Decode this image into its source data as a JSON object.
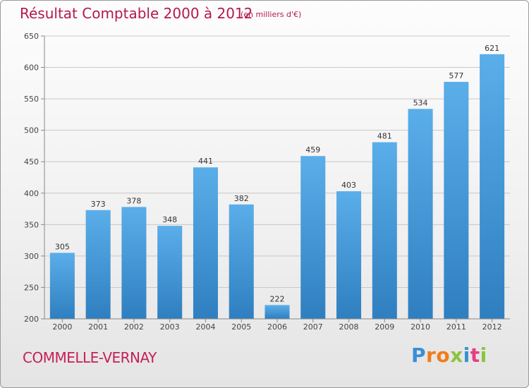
{
  "header": {
    "title": "Résultat Comptable 2000 à 2012",
    "subtitle": "(en milliers d'€)"
  },
  "footer": {
    "commune": "COMMELLE-VERNAY",
    "logo_letters": [
      "P",
      "r",
      "o",
      "x",
      "i",
      "t",
      "i"
    ],
    "logo_colors": [
      "#3a8fd4",
      "#f07d1a",
      "#f07d1a",
      "#8bc43f",
      "#3a8fd4",
      "#e53f86",
      "#8bc43f"
    ]
  },
  "colors": {
    "bar_top": "#5aaee9",
    "bar_bottom": "#2f7fc0",
    "grid": "#c8c8c8",
    "axis": "#888888"
  },
  "chart_data": {
    "type": "bar",
    "title": "Résultat Comptable 2000 à 2012",
    "subtitle": "(en milliers d'€)",
    "categories": [
      "2000",
      "2001",
      "2002",
      "2003",
      "2004",
      "2005",
      "2006",
      "2007",
      "2008",
      "2009",
      "2010",
      "2011",
      "2012"
    ],
    "values": [
      305,
      373,
      378,
      348,
      441,
      382,
      222,
      459,
      403,
      481,
      534,
      577,
      621
    ],
    "data_labels": [
      "305",
      "373",
      "378",
      "348",
      "441",
      "382",
      "222",
      "459",
      "403",
      "481",
      "534",
      "577",
      "621"
    ],
    "ylim": [
      200,
      650
    ],
    "yticks": [
      200,
      250,
      300,
      350,
      400,
      450,
      500,
      550,
      600,
      650
    ],
    "xlabel": "",
    "ylabel": "",
    "grid": true,
    "legend": "none"
  }
}
